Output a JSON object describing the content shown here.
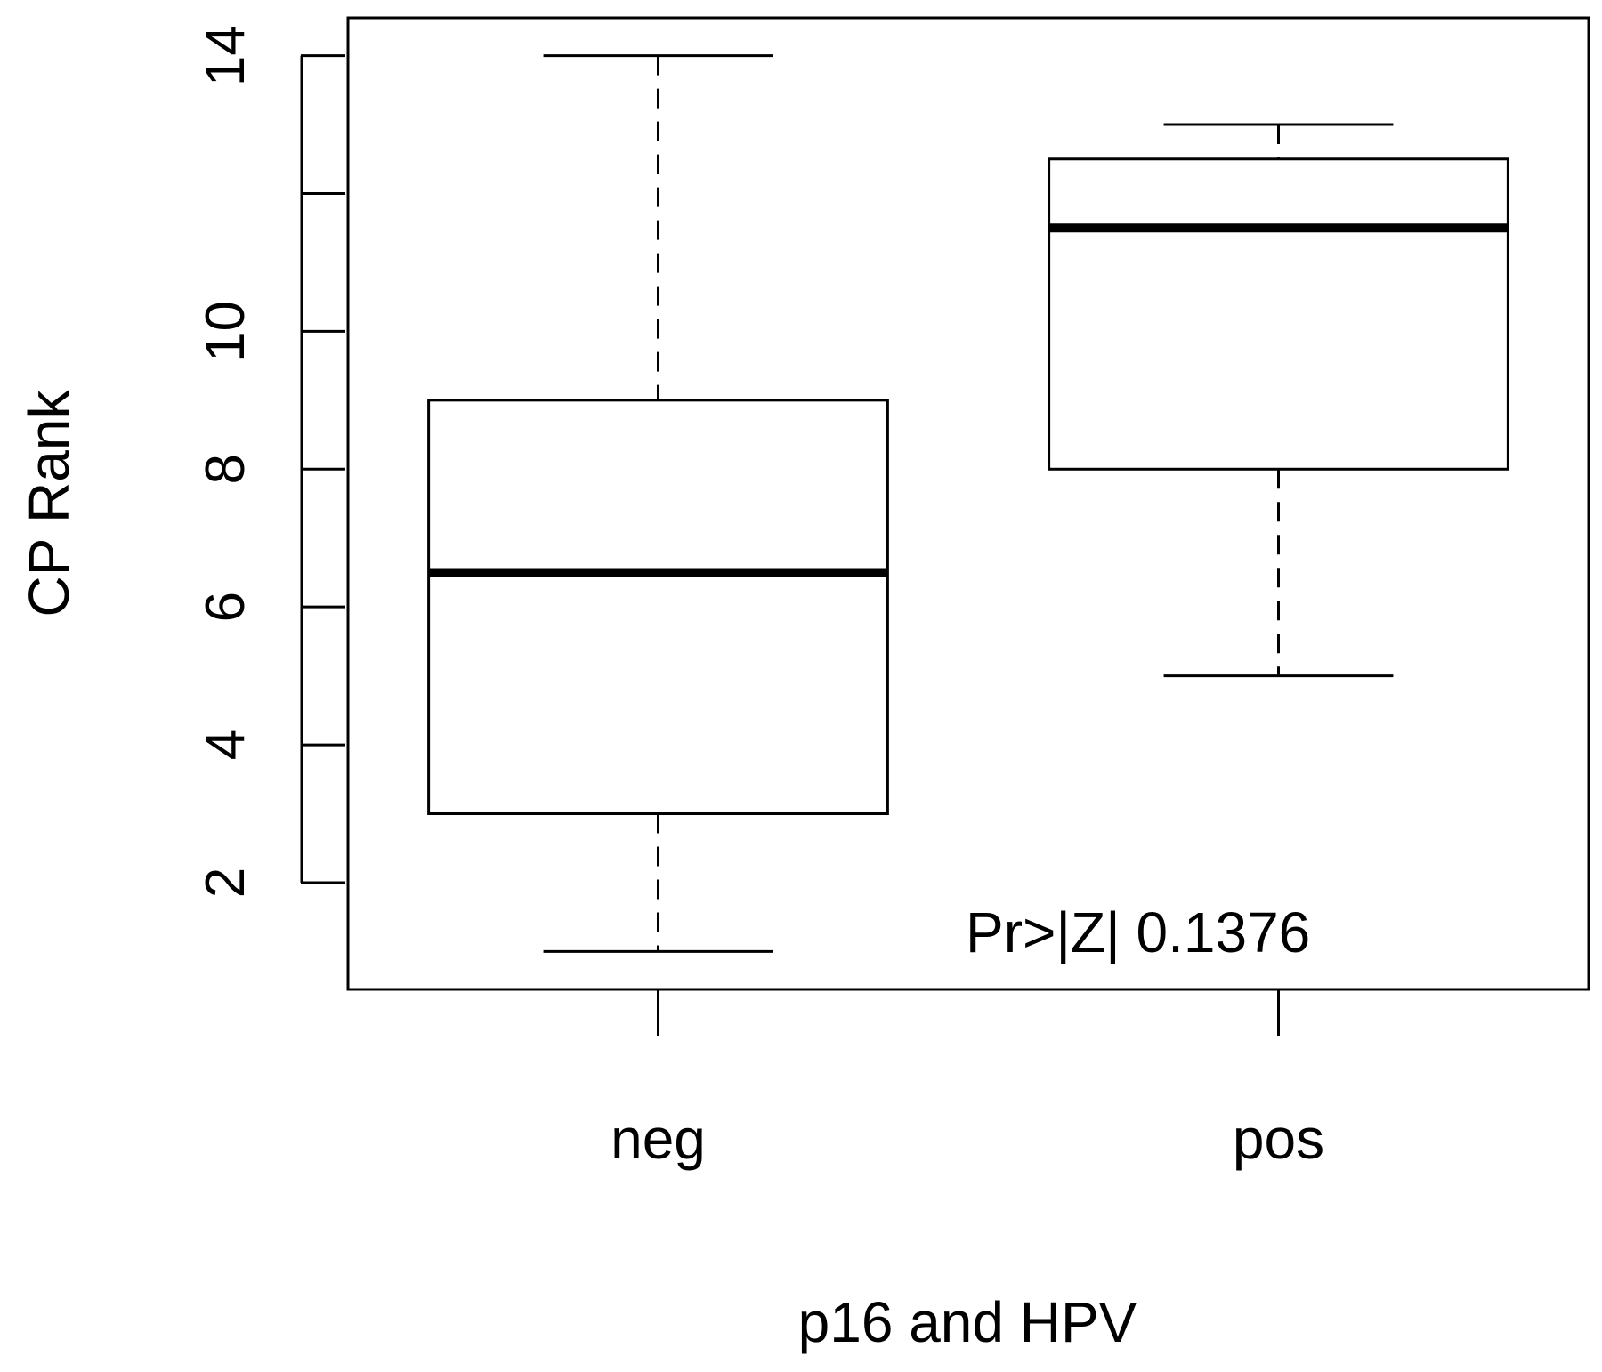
{
  "chart_data": {
    "type": "boxplot",
    "title": "",
    "xlabel": "p16 and HPV",
    "ylabel": "CP Rank",
    "categories": [
      "neg",
      "pos"
    ],
    "boxes": [
      {
        "category": "neg",
        "whisker_low": 1,
        "q1": 3,
        "median": 6.5,
        "q3": 9,
        "whisker_high": 14
      },
      {
        "category": "pos",
        "whisker_low": 5,
        "q1": 8,
        "median": 11.5,
        "q3": 12.5,
        "whisker_high": 13
      }
    ],
    "yticks": [
      2,
      4,
      6,
      8,
      10,
      12,
      14
    ],
    "ytick_labels": [
      "2",
      "4",
      "6",
      "8",
      "10",
      "",
      "14"
    ],
    "ylim": [
      0.45,
      14.55
    ],
    "grid": false,
    "annotation": "Pr>|Z| 0.1376"
  }
}
